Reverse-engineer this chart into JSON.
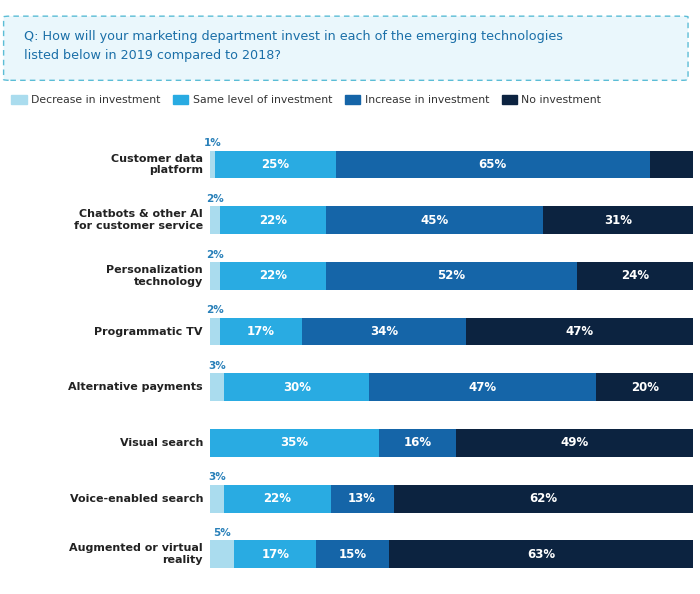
{
  "question": "Q: How will your marketing department invest in each of the emerging technologies\nlisted below in 2019 compared to 2018?",
  "categories": [
    "Customer data\nplatform",
    "Chatbots & other AI\nfor customer service",
    "Personalization\ntechnology",
    "Programmatic TV",
    "Alternative payments",
    "Visual search",
    "Voice-enabled search",
    "Augmented or virtual\nreality"
  ],
  "decrease": [
    1,
    2,
    2,
    2,
    3,
    0,
    3,
    5
  ],
  "same": [
    25,
    22,
    22,
    17,
    30,
    35,
    22,
    17
  ],
  "increase": [
    65,
    45,
    52,
    34,
    47,
    16,
    13,
    15
  ],
  "no_investment": [
    9,
    31,
    24,
    47,
    20,
    49,
    62,
    63
  ],
  "colors": {
    "decrease": "#aadcee",
    "same": "#29abe2",
    "increase": "#1565a8",
    "no_investment": "#0c2340"
  },
  "legend_labels": [
    "Decrease in investment",
    "Same level of investment",
    "Increase in investment",
    "No investment"
  ],
  "background_color": "#ffffff",
  "bar_height": 0.5,
  "question_box_color": "#eaf7fc",
  "question_box_border": "#5bbdd6",
  "question_text_color": "#1a6fa8",
  "label_color": "#333333",
  "decrease_label_color": "#2980b9"
}
